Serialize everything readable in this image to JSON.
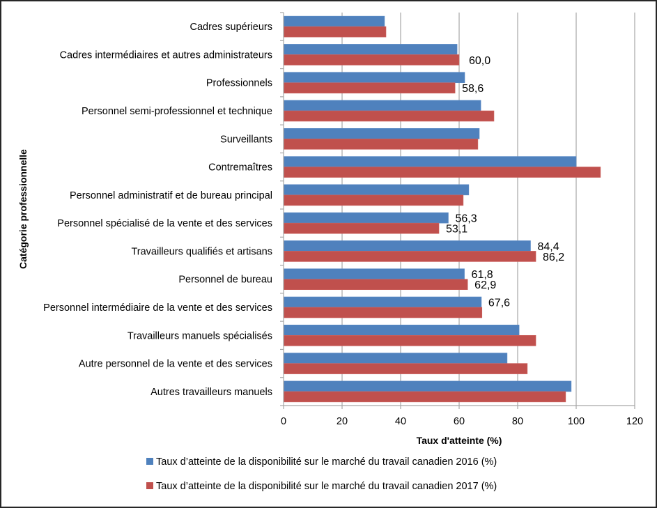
{
  "chart_data": {
    "type": "bar",
    "orientation": "horizontal",
    "title": "",
    "xlabel": "Taux d'atteinte (%)",
    "ylabel": "Catégorie professionnelle",
    "xlim": [
      0,
      120
    ],
    "xticks": [
      0,
      20,
      40,
      60,
      80,
      100,
      120
    ],
    "grid": true,
    "legend_position": "bottom",
    "categories": [
      "Cadres supérieurs",
      "Cadres intermédiaires et autres administrateurs",
      "Professionnels",
      "Personnel semi-professionnel et technique",
      "Surveillants",
      "Contremaîtres",
      "Personnel administratif et de bureau principal",
      "Personnel spécialisé de la vente et des services",
      "Travailleurs qualifiés et artisans",
      "Personnel de bureau",
      "Personnel intermédiaire de la vente et des services",
      "Travailleurs manuels spécialisés",
      "Autre personnel de la vente et des services",
      "Autres travailleurs manuels"
    ],
    "series": [
      {
        "name": "Taux d’atteinte de la disponibilité sur le marché du travail canadien 2016 (%)",
        "color": "#4f81bd",
        "values": [
          34.5,
          59.3,
          61.9,
          67.4,
          66.9,
          100.0,
          63.3,
          56.3,
          84.4,
          61.8,
          67.6,
          80.5,
          76.4,
          98.3
        ],
        "labels": [
          null,
          null,
          null,
          null,
          null,
          null,
          null,
          "56,3",
          "84,4",
          "61,8",
          "67,6",
          null,
          null,
          null
        ]
      },
      {
        "name": "Taux d’atteinte de la disponibilité sur le marché du travail canadien 2017 (%)",
        "color": "#c0504d",
        "values": [
          35.0,
          60.0,
          58.6,
          71.9,
          66.4,
          108.3,
          61.4,
          53.1,
          86.2,
          62.9,
          67.8,
          86.2,
          83.3,
          96.4
        ],
        "labels": [
          null,
          "60,0",
          "58,6",
          null,
          null,
          null,
          null,
          "53,1",
          "86,2",
          "62,9",
          null,
          null,
          null,
          null
        ]
      }
    ]
  }
}
